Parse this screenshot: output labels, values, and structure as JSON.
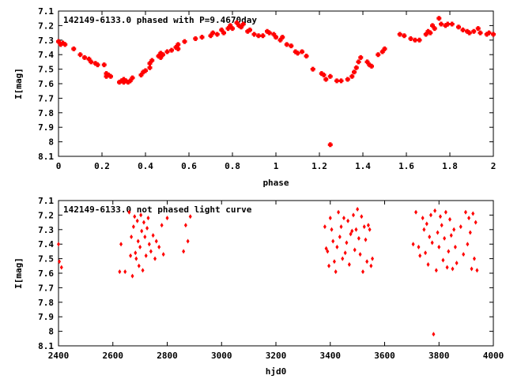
{
  "chart_data": [
    {
      "type": "scatter",
      "title": "142149-6133.0 phased with P=9.4670day",
      "xlabel": "phase",
      "ylabel": "I[mag]",
      "xlim": [
        0,
        2
      ],
      "ylim": [
        8.1,
        7.1
      ],
      "y_inverted": true,
      "grid": false,
      "marker_color": "#ff0000",
      "marker": "cross",
      "xticks": [
        "0",
        "0.2",
        "0.4",
        "0.6",
        "0.8",
        "1",
        "1.2",
        "1.4",
        "1.6",
        "1.8",
        "2"
      ],
      "yticks": [
        "7.1",
        "7.2",
        "7.3",
        "7.4",
        "7.5",
        "7.6",
        "7.7",
        "7.8",
        "7.9",
        "8",
        "8.1"
      ],
      "series": [
        {
          "x": [
            0.0,
            0.01,
            0.02,
            0.03,
            0.07,
            0.1,
            0.12,
            0.14,
            0.15,
            0.17,
            0.18,
            0.21,
            0.22,
            0.22,
            0.23,
            0.24,
            0.28,
            0.29,
            0.3,
            0.3,
            0.31,
            0.32,
            0.33,
            0.34,
            0.38,
            0.39,
            0.4,
            0.42,
            0.42,
            0.43,
            0.46,
            0.47,
            0.47,
            0.48,
            0.5,
            0.52,
            0.54,
            0.55,
            0.55,
            0.58,
            0.63,
            0.66,
            0.7,
            0.71,
            0.73,
            0.75,
            0.76,
            0.78,
            0.79,
            0.8,
            0.82,
            0.83,
            0.84,
            0.85,
            0.87,
            0.88,
            0.9,
            0.92,
            0.94,
            0.96,
            0.97,
            0.99,
            1.0,
            1.02,
            1.03,
            1.05,
            1.07,
            1.09,
            1.1,
            1.12,
            1.14,
            1.17,
            1.21,
            1.22,
            1.23,
            1.25,
            1.25,
            1.28,
            1.3,
            1.33,
            1.35,
            1.36,
            1.37,
            1.38,
            1.39,
            1.42,
            1.43,
            1.44,
            1.47,
            1.49,
            1.5,
            1.57,
            1.59,
            1.62,
            1.64,
            1.66,
            1.69,
            1.7,
            1.71,
            1.72,
            1.73,
            1.75,
            1.76,
            1.78,
            1.79,
            1.81,
            1.84,
            1.86,
            1.88,
            1.89,
            1.91,
            1.93,
            1.94,
            1.97,
            1.98,
            2.0
          ],
          "y": [
            7.31,
            7.33,
            7.32,
            7.33,
            7.36,
            7.4,
            7.42,
            7.43,
            7.45,
            7.46,
            7.47,
            7.47,
            7.53,
            7.55,
            7.54,
            7.55,
            7.59,
            7.58,
            7.57,
            7.59,
            7.58,
            7.59,
            7.58,
            7.56,
            7.54,
            7.52,
            7.51,
            7.49,
            7.46,
            7.44,
            7.41,
            7.39,
            7.42,
            7.4,
            7.38,
            7.37,
            7.35,
            7.33,
            7.36,
            7.31,
            7.29,
            7.28,
            7.27,
            7.25,
            7.26,
            7.23,
            7.25,
            7.22,
            7.2,
            7.22,
            7.18,
            7.2,
            7.21,
            7.19,
            7.24,
            7.23,
            7.26,
            7.27,
            7.27,
            7.24,
            7.25,
            7.26,
            7.28,
            7.3,
            7.28,
            7.33,
            7.34,
            7.38,
            7.39,
            7.38,
            7.41,
            7.5,
            7.53,
            7.54,
            7.57,
            7.55,
            8.02,
            7.58,
            7.58,
            7.57,
            7.55,
            7.52,
            7.49,
            7.45,
            7.42,
            7.45,
            7.47,
            7.48,
            7.4,
            7.38,
            7.36,
            7.26,
            7.27,
            7.29,
            7.3,
            7.3,
            7.26,
            7.24,
            7.25,
            7.2,
            7.22,
            7.15,
            7.19,
            7.2,
            7.19,
            7.19,
            7.21,
            7.23,
            7.24,
            7.25,
            7.24,
            7.22,
            7.25,
            7.26,
            7.25,
            7.26
          ]
        }
      ]
    },
    {
      "type": "scatter",
      "title": "142149-6133.0 not phased light curve",
      "xlabel": "hjd0",
      "ylabel": "I[mag]",
      "xlim": [
        2400,
        4000
      ],
      "ylim": [
        8.1,
        7.1
      ],
      "y_inverted": true,
      "grid": false,
      "marker_color": "#ff0000",
      "marker": "diamond",
      "xticks": [
        "2400",
        "2600",
        "2800",
        "3000",
        "3200",
        "3400",
        "3600",
        "3800",
        "4000"
      ],
      "yticks": [
        "7.1",
        "7.2",
        "7.3",
        "7.4",
        "7.5",
        "7.6",
        "7.7",
        "7.8",
        "7.9",
        "8",
        "8.1"
      ],
      "series": [
        {
          "x": [
            2400,
            2403,
            2411,
            2625,
            2630,
            2645,
            2660,
            2665,
            2668,
            2672,
            2676,
            2680,
            2683,
            2686,
            2690,
            2693,
            2696,
            2700,
            2703,
            2706,
            2710,
            2714,
            2718,
            2722,
            2726,
            2730,
            2734,
            2740,
            2748,
            2755,
            2760,
            2770,
            2780,
            2786,
            2800,
            2860,
            2868,
            2876,
            2885,
            3380,
            3385,
            3390,
            3395,
            3400,
            3405,
            3410,
            3415,
            3420,
            3425,
            3430,
            3435,
            3440,
            3445,
            3450,
            3455,
            3460,
            3465,
            3470,
            3475,
            3480,
            3485,
            3490,
            3495,
            3500,
            3505,
            3510,
            3515,
            3520,
            3525,
            3530,
            3535,
            3540,
            3545,
            3550,
            3555,
            3705,
            3715,
            3725,
            3730,
            3740,
            3745,
            3750,
            3755,
            3760,
            3765,
            3770,
            3775,
            3780,
            3785,
            3790,
            3795,
            3800,
            3805,
            3810,
            3815,
            3820,
            3825,
            3830,
            3835,
            3840,
            3845,
            3850,
            3855,
            3860,
            3865,
            3880,
            3890,
            3898,
            3905,
            3910,
            3915,
            3920,
            3925,
            3930,
            3935,
            3940
          ],
          "y": [
            7.4,
            7.52,
            7.56,
            7.59,
            7.4,
            7.59,
            7.18,
            7.48,
            7.35,
            7.62,
            7.28,
            7.21,
            7.46,
            7.5,
            7.24,
            7.38,
            7.55,
            7.42,
            7.2,
            7.31,
            7.58,
            7.25,
            7.35,
            7.48,
            7.29,
            7.22,
            7.4,
            7.45,
            7.34,
            7.5,
            7.38,
            7.42,
            7.27,
            7.47,
            7.22,
            7.45,
            7.27,
            7.38,
            7.21,
            7.28,
            7.43,
            7.45,
            7.55,
            7.22,
            7.3,
            7.38,
            7.52,
            7.59,
            7.42,
            7.18,
            7.35,
            7.28,
            7.5,
            7.22,
            7.46,
            7.39,
            7.24,
            7.54,
            7.33,
            7.31,
            7.2,
            7.44,
            7.3,
            7.16,
            7.36,
            7.47,
            7.21,
            7.59,
            7.28,
            7.37,
            7.52,
            7.27,
            7.3,
            7.55,
            7.5,
            7.4,
            7.18,
            7.42,
            7.48,
            7.22,
            7.3,
            7.46,
            7.26,
            7.54,
            7.35,
            7.2,
            7.39,
            8.02,
            7.17,
            7.58,
            7.32,
            7.42,
            7.21,
            7.27,
            7.51,
            7.36,
            7.18,
            7.56,
            7.45,
            7.23,
            7.34,
            7.57,
            7.3,
            7.42,
            7.53,
            7.28,
            7.47,
            7.18,
            7.4,
            7.22,
            7.32,
            7.57,
            7.19,
            7.5,
            7.25,
            7.58
          ]
        }
      ]
    }
  ]
}
